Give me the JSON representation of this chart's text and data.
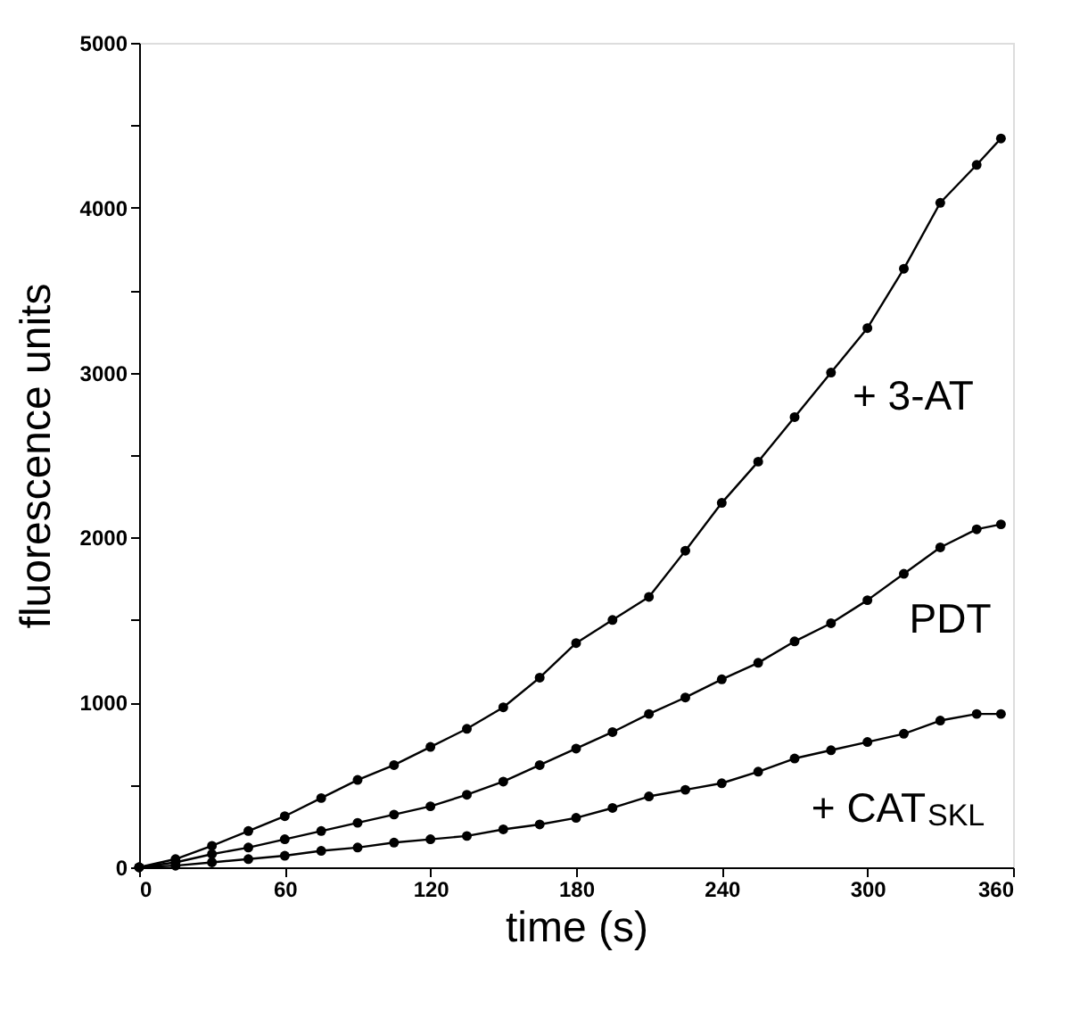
{
  "chart_data": {
    "type": "line",
    "xlabel": "time (s)",
    "ylabel": "fluorescence units",
    "xlim": [
      0,
      360
    ],
    "ylim": [
      0,
      5000
    ],
    "xticks": [
      0,
      60,
      120,
      180,
      240,
      300,
      360
    ],
    "yticks": [
      0,
      {
        "value": 500,
        "label": null
      },
      1000,
      {
        "value": 1500,
        "label": null
      },
      2000,
      {
        "value": 2500,
        "label": null
      },
      3000,
      {
        "value": 3500,
        "label": null
      },
      4000,
      {
        "value": 4500,
        "label": null
      },
      5000
    ],
    "grid": false,
    "legend": false,
    "marker": "circle",
    "line_style": "solid",
    "x": [
      0,
      15,
      30,
      45,
      60,
      75,
      90,
      105,
      120,
      135,
      150,
      165,
      180,
      195,
      210,
      225,
      240,
      255,
      270,
      285,
      300,
      315,
      330,
      345,
      355
    ],
    "series": [
      {
        "name": "+ 3-AT",
        "color": "#000000",
        "values": [
          0,
          50,
          130,
          220,
          310,
          420,
          530,
          620,
          730,
          840,
          970,
          1150,
          1360,
          1500,
          1640,
          1920,
          2210,
          2460,
          2730,
          3000,
          3270,
          3630,
          4030,
          4260,
          4420
        ]
      },
      {
        "name": "PDT",
        "color": "#000000",
        "values": [
          0,
          30,
          80,
          120,
          170,
          220,
          270,
          320,
          370,
          440,
          520,
          620,
          720,
          820,
          930,
          1030,
          1140,
          1240,
          1370,
          1480,
          1620,
          1780,
          1940,
          2050,
          2080
        ]
      },
      {
        "name": "+ CAT$_{SKL}$",
        "color": "#000000",
        "values": [
          0,
          10,
          30,
          50,
          70,
          100,
          120,
          150,
          170,
          190,
          230,
          260,
          300,
          360,
          430,
          470,
          510,
          580,
          660,
          710,
          760,
          810,
          890,
          930,
          930
        ]
      }
    ]
  }
}
